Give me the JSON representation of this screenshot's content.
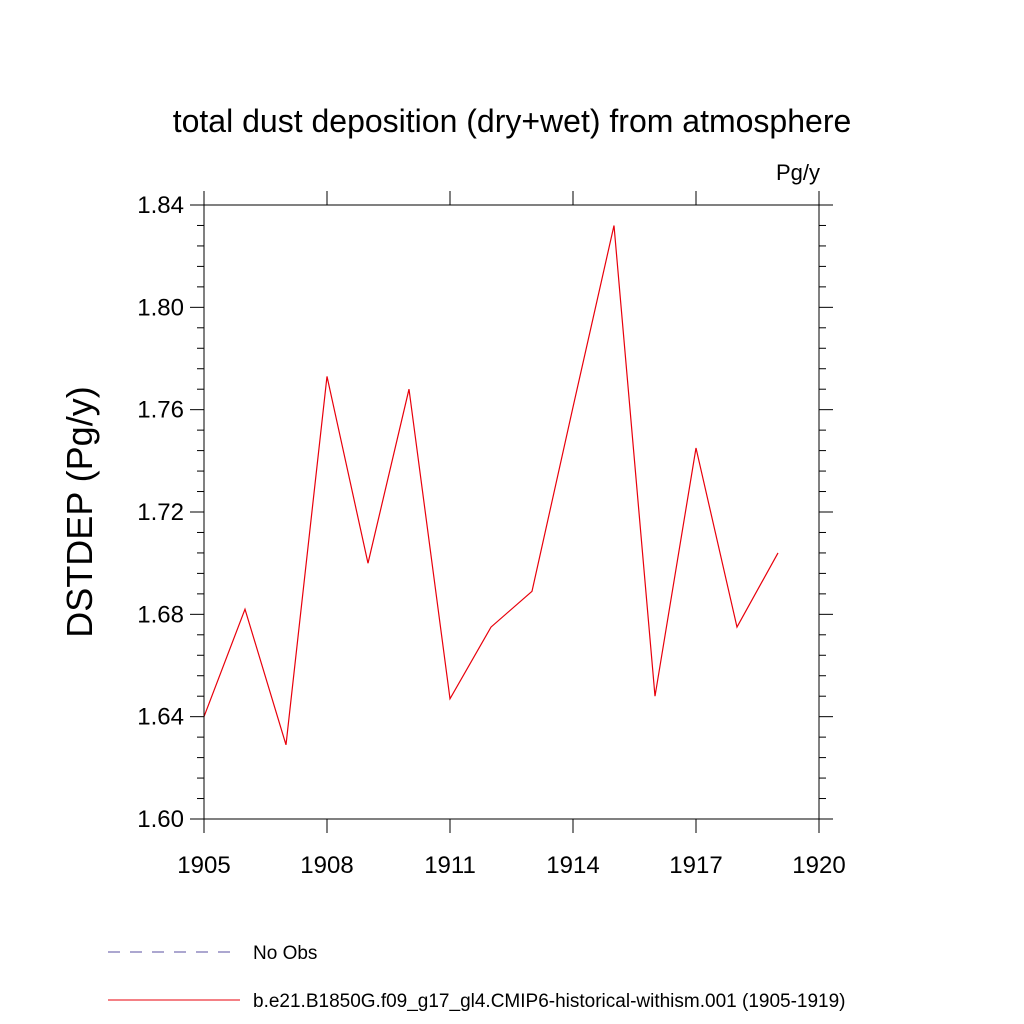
{
  "chart_data": {
    "type": "line",
    "title": "total dust deposition (dry+wet) from atmosphere",
    "units_label": "Pg/y",
    "ylabel": "DSTDEP  (Pg/y)",
    "xlabel": "",
    "xlim": [
      1905,
      1920
    ],
    "ylim": [
      1.6,
      1.84
    ],
    "x_ticks": [
      1905,
      1908,
      1911,
      1914,
      1917,
      1920
    ],
    "x_tick_labels": [
      "1905",
      "1908",
      "1911",
      "1914",
      "1917",
      "1920"
    ],
    "y_ticks": [
      1.6,
      1.64,
      1.68,
      1.72,
      1.76,
      1.8,
      1.84
    ],
    "y_tick_labels": [
      "1.60",
      "1.64",
      "1.68",
      "1.72",
      "1.76",
      "1.80",
      "1.84"
    ],
    "grid": false,
    "legend_position": "bottom",
    "series": [
      {
        "name": "b.e21.B1850G.f09_g17_gl4.CMIP6-historical-withism.001 (1905-1919)",
        "color": "#e8000b",
        "style": "solid",
        "x": [
          1905,
          1906,
          1907,
          1908,
          1909,
          1910,
          1911,
          1912,
          1913,
          1914,
          1915,
          1916,
          1917,
          1918,
          1919
        ],
        "values": [
          1.64,
          1.682,
          1.629,
          1.773,
          1.7,
          1.768,
          1.647,
          1.675,
          1.689,
          1.761,
          1.832,
          1.648,
          1.745,
          1.675,
          1.704
        ]
      }
    ],
    "legend": [
      {
        "label": "No Obs",
        "color": "#5a4fa0",
        "style": "dashed"
      },
      {
        "label": "b.e21.B1850G.f09_g17_gl4.CMIP6-historical-withism.001 (1905-1919)",
        "color": "#e8000b",
        "style": "solid"
      }
    ]
  }
}
